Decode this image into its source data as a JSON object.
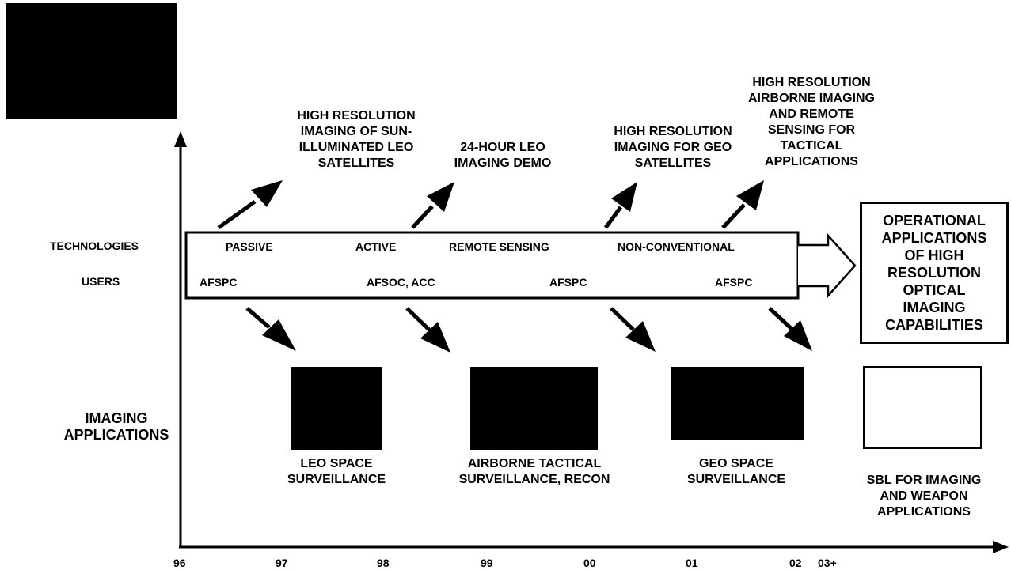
{
  "row_labels": {
    "technologies": "TECHNOLOGIES",
    "users": "USERS",
    "imaging_applications": "IMAGING\nAPPLICATIONS"
  },
  "capabilities": [
    "HIGH RESOLUTION\nIMAGING OF SUN-\nILLUMINATED LEO\nSATELLITES",
    "24-HOUR LEO\nIMAGING DEMO",
    "HIGH RESOLUTION\nIMAGING FOR GEO\nSATELLITES",
    "HIGH RESOLUTION\nAIRBORNE IMAGING\nAND REMOTE\nSENSING FOR\nTACTICAL\nAPPLICATIONS"
  ],
  "technologies": [
    "PASSIVE",
    "ACTIVE",
    "REMOTE SENSING",
    "NON-CONVENTIONAL"
  ],
  "users": [
    "AFSPC",
    "AFSOC, ACC",
    "AFSPC",
    "AFSPC"
  ],
  "applications": [
    "LEO SPACE\nSURVEILLANCE",
    "AIRBORNE TACTICAL\nSURVEILLANCE, RECON",
    "GEO SPACE\nSURVEILLANCE",
    "SBL FOR IMAGING\nAND WEAPON\nAPPLICATIONS"
  ],
  "operational_box": "OPERATIONAL\nAPPLICATIONS\nOF HIGH\nRESOLUTION\nOPTICAL\nIMAGING\nCAPABILITIES",
  "timeline_ticks": [
    "96",
    "97",
    "98",
    "99",
    "00",
    "01",
    "02",
    "03+"
  ]
}
